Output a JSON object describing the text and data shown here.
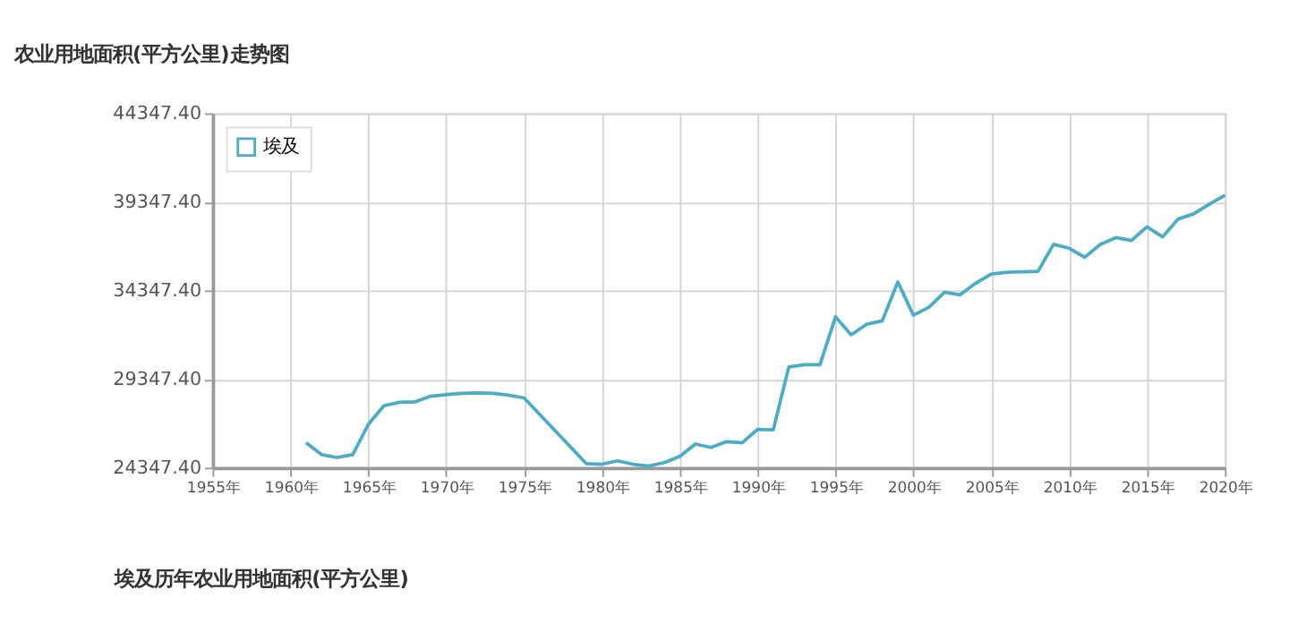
{
  "chart_data": {
    "type": "line",
    "title": "农业用地面积(平方公里)走势图",
    "annotations": [
      "埃及历年农业用地面积(平方公里)"
    ],
    "x": [
      1961,
      1962,
      1963,
      1964,
      1965,
      1966,
      1967,
      1968,
      1969,
      1970,
      1971,
      1972,
      1973,
      1974,
      1975,
      1979,
      1980,
      1981,
      1982,
      1983,
      1984,
      1985,
      1986,
      1987,
      1988,
      1989,
      1990,
      1991,
      1992,
      1993,
      1994,
      1995,
      1996,
      1997,
      1998,
      1999,
      2000,
      2001,
      2002,
      2003,
      2004,
      2005,
      2006,
      2007,
      2008,
      2009,
      2010,
      2011,
      2012,
      2013,
      2014,
      2015,
      2016,
      2017,
      2018,
      2019,
      2020
    ],
    "series": [
      {
        "name": "埃及",
        "color": "#4bacc6",
        "values": [
          25750,
          25080,
          24920,
          25080,
          26790,
          27840,
          28030,
          28060,
          28380,
          28470,
          28540,
          28570,
          28540,
          28440,
          28280,
          24570,
          24540,
          24730,
          24540,
          24440,
          24630,
          24980,
          25680,
          25490,
          25810,
          25750,
          26510,
          26480,
          30030,
          30160,
          30160,
          32860,
          31840,
          32440,
          32630,
          34830,
          32950,
          33400,
          34250,
          34100,
          34760,
          35270,
          35370,
          35400,
          35430,
          36950,
          36730,
          36220,
          36950,
          37330,
          37170,
          37940,
          37370,
          38380,
          38670,
          39210,
          39720
        ]
      }
    ],
    "xlim": [
      1955,
      2020
    ],
    "xticks": [
      {
        "value": 1955,
        "label": "1955年"
      },
      {
        "value": 1960,
        "label": "1960年"
      },
      {
        "value": 1965,
        "label": "1965年"
      },
      {
        "value": 1970,
        "label": "1970年"
      },
      {
        "value": 1975,
        "label": "1975年"
      },
      {
        "value": 1980,
        "label": "1980年"
      },
      {
        "value": 1985,
        "label": "1985年"
      },
      {
        "value": 1990,
        "label": "1990年"
      },
      {
        "value": 1995,
        "label": "1995年"
      },
      {
        "value": 2000,
        "label": "2000年"
      },
      {
        "value": 2005,
        "label": "2005年"
      },
      {
        "value": 2010,
        "label": "2010年"
      },
      {
        "value": 2015,
        "label": "2015年"
      },
      {
        "value": 2020,
        "label": "2020年"
      }
    ],
    "ylim": [
      24347.4,
      44347.4
    ],
    "yticks": [
      {
        "value": 24347.4,
        "label": "24347.40"
      },
      {
        "value": 29347.4,
        "label": "29347.40"
      },
      {
        "value": 34347.4,
        "label": "34347.40"
      },
      {
        "value": 39347.4,
        "label": "39347.40"
      },
      {
        "value": 44347.4,
        "label": "44347.40"
      }
    ],
    "grid": true,
    "legend": "top left",
    "marker": "none",
    "line_style": "solid"
  }
}
